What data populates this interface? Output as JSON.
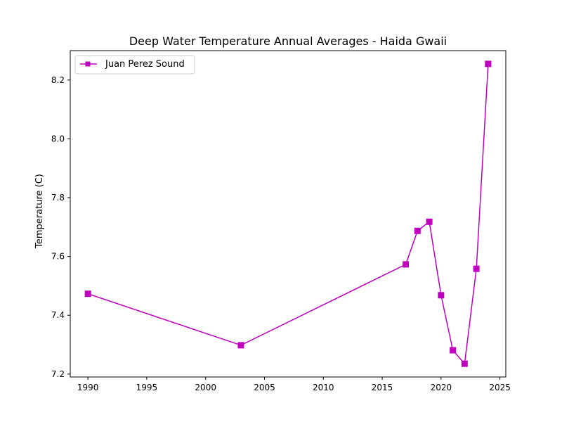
{
  "chart_data": {
    "type": "line",
    "title": "Deep Water Temperature Annual Averages - Haida Gwaii",
    "xlabel": "",
    "ylabel": "Temperature (C)",
    "xlim": [
      1988.5,
      2025.5
    ],
    "ylim": [
      7.19,
      8.3
    ],
    "x_ticks": [
      1990,
      1995,
      2000,
      2005,
      2010,
      2015,
      2020,
      2025
    ],
    "y_ticks": [
      7.2,
      7.4,
      7.6,
      7.8,
      8.0,
      8.2
    ],
    "grid": false,
    "legend_position": "top-left",
    "series": [
      {
        "name": "Juan Perez Sound",
        "color": "#bf00bf",
        "marker": "square",
        "x": [
          1990,
          2003,
          2017,
          2018,
          2019,
          2020,
          2021,
          2022,
          2023,
          2024
        ],
        "y": [
          7.473,
          7.298,
          7.573,
          7.687,
          7.718,
          7.468,
          7.281,
          7.235,
          7.558,
          8.255
        ]
      }
    ]
  }
}
